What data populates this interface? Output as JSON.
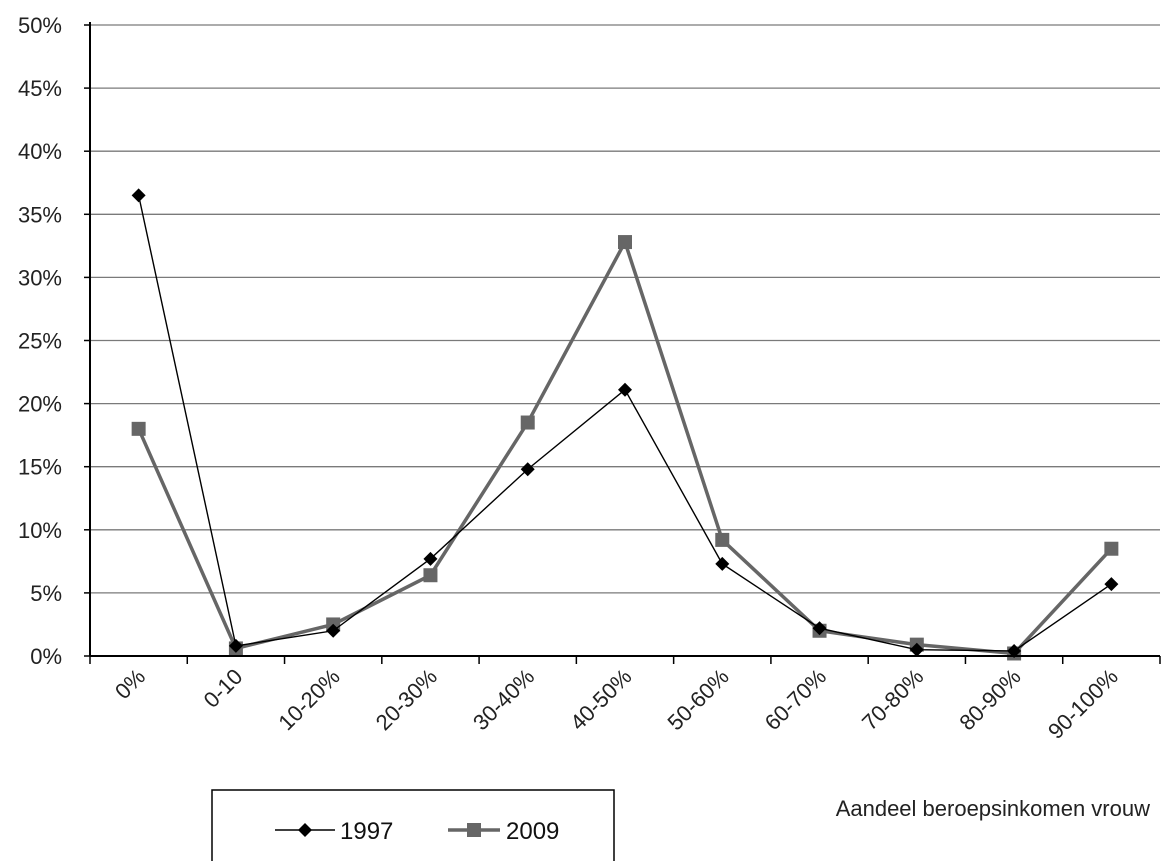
{
  "chart_data": {
    "type": "line",
    "title": "",
    "xlabel": "Aandeel beroepsinkomen vrouw",
    "ylabel": "",
    "categories": [
      "0%",
      "0-10",
      "10-20%",
      "20-30%",
      "30-40%",
      "40-50%",
      "50-60%",
      "60-70%",
      "70-80%",
      "80-90%",
      "90-100%"
    ],
    "ylim": [
      0,
      50
    ],
    "y_ticks": [
      "0%",
      "5%",
      "10%",
      "15%",
      "20%",
      "25%",
      "30%",
      "35%",
      "40%",
      "45%",
      "50%"
    ],
    "grid": "horizontal",
    "legend_position": "bottom",
    "series": [
      {
        "name": "1997",
        "marker": "diamond",
        "color": "#000000",
        "values": [
          36.5,
          0.8,
          2.0,
          7.7,
          14.8,
          21.1,
          7.3,
          2.2,
          0.5,
          0.4,
          5.7
        ]
      },
      {
        "name": "2009",
        "marker": "square",
        "color": "#666666",
        "values": [
          18.0,
          0.6,
          2.5,
          6.4,
          18.5,
          32.8,
          9.2,
          2.0,
          0.9,
          0.2,
          8.5
        ]
      }
    ]
  }
}
